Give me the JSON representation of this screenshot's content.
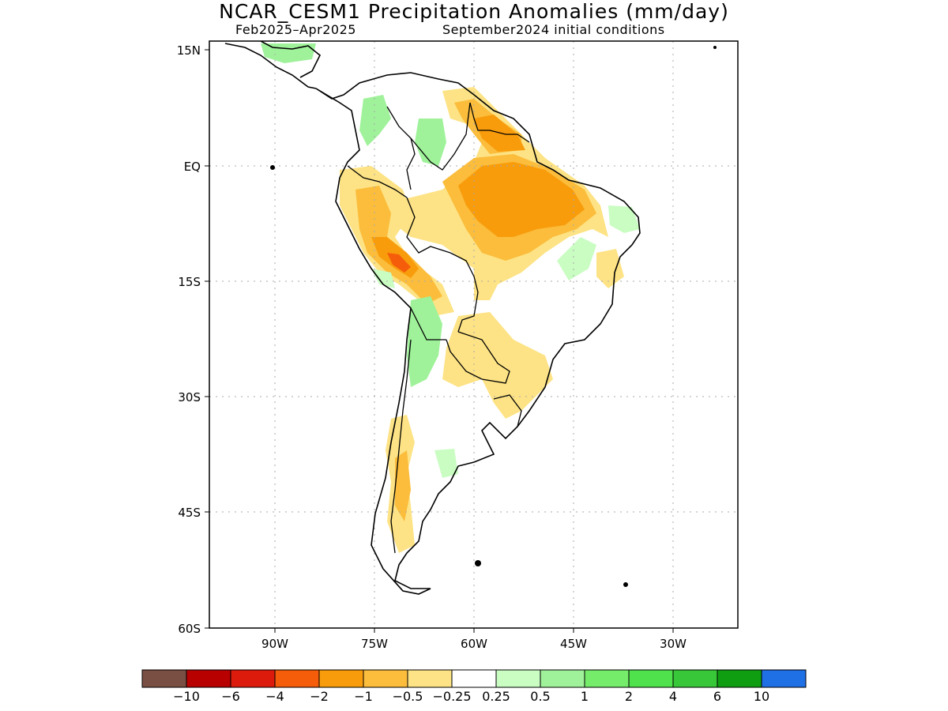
{
  "title": "NCAR_CESM1 Precipitation Anomalies (mm/day)",
  "subtitle_left": "Feb2025–Apr2025",
  "subtitle_right": "September2024 initial conditions",
  "lat_labels": [
    "15N",
    "EQ",
    "15S",
    "30S",
    "45S",
    "60S"
  ],
  "lon_labels": [
    "90W",
    "75W",
    "60W",
    "45W",
    "30W"
  ],
  "colorbar": {
    "colors": [
      "#7a4f43",
      "#b80000",
      "#dd1b0c",
      "#f55d0a",
      "#f89c0c",
      "#fbbd3b",
      "#fde385",
      "#ffffff",
      "#c9fdc2",
      "#9ff29a",
      "#76ec6b",
      "#4fe24c",
      "#37c739",
      "#0f9e12",
      "#1f6fe5"
    ],
    "labels": [
      "−10",
      "−6",
      "−4",
      "−2",
      "−1",
      "−0.5",
      "−0.25",
      "0.25",
      "0.5",
      "1",
      "2",
      "4",
      "6",
      "10"
    ]
  },
  "chart_data": {
    "type": "heatmap",
    "title": "NCAR_CESM1 Precipitation Anomalies (mm/day)",
    "period": "Feb2025–Apr2025",
    "initial_conditions": "September2024 initial conditions",
    "lon_range": [
      -100,
      -20
    ],
    "lat_range": [
      -60,
      15
    ],
    "x_ticks": [
      "90W",
      "75W",
      "60W",
      "45W",
      "30W"
    ],
    "y_ticks": [
      "15N",
      "EQ",
      "15S",
      "30S",
      "45S",
      "60S"
    ],
    "levels": [
      -10,
      -6,
      -4,
      -2,
      -1,
      -0.5,
      -0.25,
      0.25,
      0.5,
      1,
      2,
      4,
      6,
      10
    ],
    "grid": true
  }
}
